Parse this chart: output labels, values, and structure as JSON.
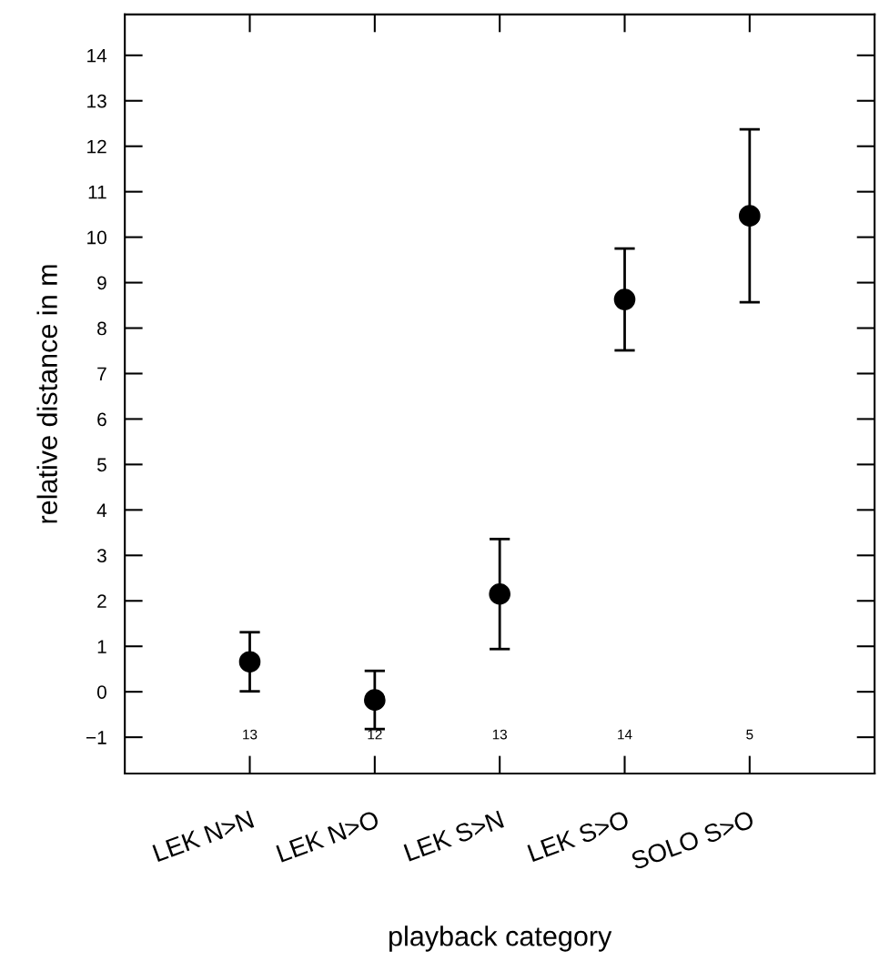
{
  "chart_data": {
    "type": "scatter",
    "xlabel": "playback category",
    "ylabel": "relative distance in m",
    "categories": [
      "LEK N>N",
      "LEK N>O",
      "LEK S>N",
      "LEK S>O",
      "SOLO S>O"
    ],
    "series": [
      {
        "color": "#000000",
        "values": [
          0.66,
          -0.18,
          2.15,
          8.63,
          10.47
        ],
        "errors": [
          0.65,
          0.64,
          1.21,
          1.12,
          1.9
        ]
      }
    ],
    "annotations": [
      "13",
      "12",
      "13",
      "14",
      "5"
    ],
    "ylim": [
      -1.8,
      14.9
    ],
    "yticks": [
      -1,
      0,
      1,
      2,
      3,
      4,
      5,
      6,
      7,
      8,
      9,
      10,
      11,
      12,
      13,
      14
    ],
    "marker": "circle",
    "grid": false,
    "legend": false
  }
}
